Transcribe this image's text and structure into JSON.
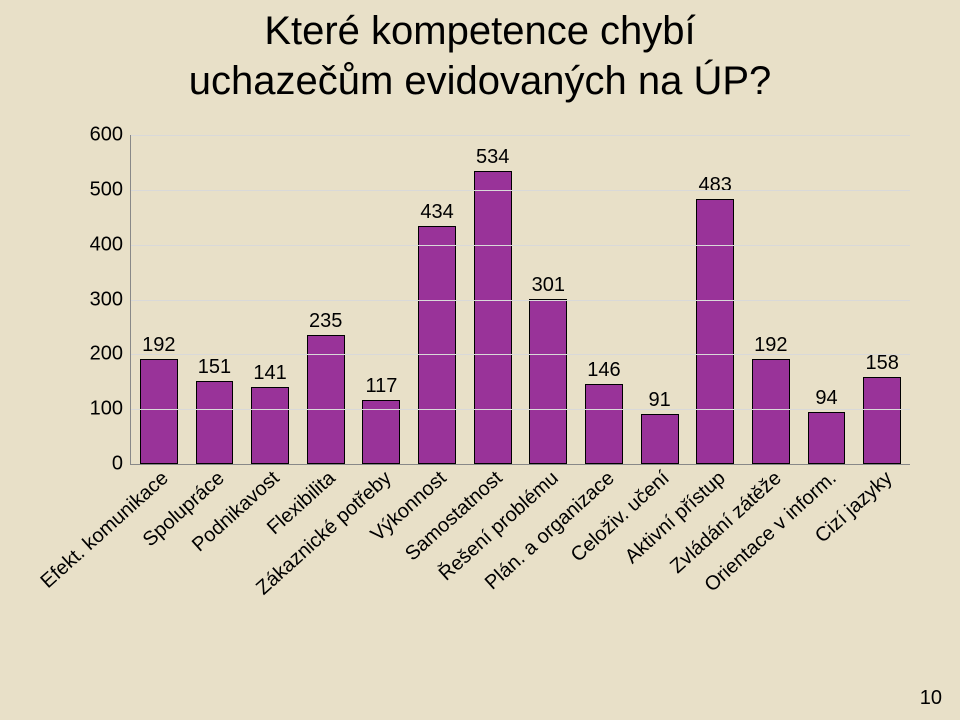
{
  "page": {
    "number": "10",
    "background_color": "#e8e0c8"
  },
  "chart": {
    "type": "bar",
    "title_line1": "Které kompetence chybí",
    "title_line2": "uchazečům evidovaných na ÚP?",
    "title_fontsize": 40,
    "label_fontsize": 20,
    "value_fontsize": 20,
    "ylim": [
      0,
      600
    ],
    "ytick_step": 100,
    "yticks": [
      "0",
      "100",
      "200",
      "300",
      "400",
      "500",
      "600"
    ],
    "bar_color": "#993399",
    "bar_border_color": "#000000",
    "grid_color": "#d9d9d9",
    "axis_color": "#888888",
    "bar_width_ratio": 0.68,
    "categories": [
      "Efekt. komunikace",
      "Spolupráce",
      "Podnikavost",
      "Flexibilita",
      "Zákaznické potřeby",
      "Výkonnost",
      "Samostatnost",
      "Řešení problému",
      "Plán. a organizace",
      "Celoživ. učení",
      "Aktivní přístup",
      "Zvládání zátěže",
      "Orientace v inform.",
      "Cizí jazyky"
    ],
    "values": [
      192,
      151,
      141,
      235,
      117,
      434,
      534,
      301,
      146,
      91,
      483,
      192,
      94,
      158
    ],
    "value_labels": [
      "192",
      "151",
      "141",
      "235",
      "117",
      "434",
      "534",
      "301",
      "146",
      "91",
      "483",
      "192",
      "94",
      "158"
    ]
  }
}
